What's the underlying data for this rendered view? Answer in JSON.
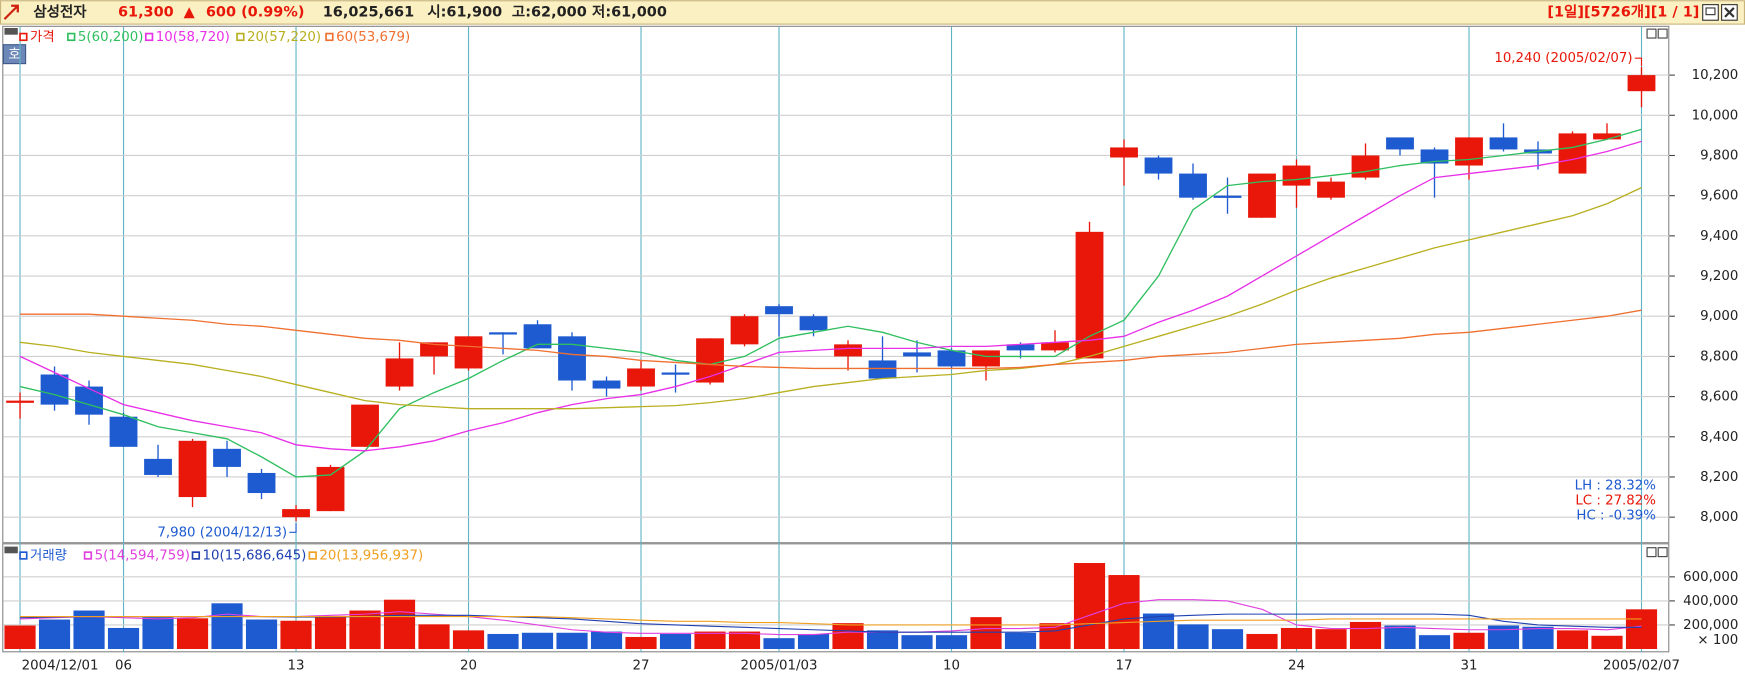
{
  "header": {
    "name": "삼성전자",
    "price": "61,300",
    "change_mark": "▲",
    "change": "600 (0.99%)",
    "volume": "16,025,661",
    "open": "시:61,900",
    "high": "고:62,000",
    "low": "저:61,000",
    "status": "[1일][5726개][1 / 1]",
    "side_button": "호"
  },
  "chart_data": [
    {
      "type": "candlestick",
      "series": [
        {
          "name": "가격",
          "color": "#e8170a",
          "up_color": "#e8170a",
          "down_color": "#1e5bd0",
          "open": [
            8570,
            8710,
            8650,
            8500,
            8290,
            8100,
            8340,
            8220,
            8000,
            8030,
            8350,
            8650,
            8800,
            8740,
            8920,
            8960,
            8900,
            8680,
            8650,
            8720,
            8670,
            8860,
            9050,
            9000,
            8800,
            8780,
            8820,
            8830,
            8750,
            8860,
            8830,
            8790,
            9790,
            9790,
            9710,
            9600,
            9490,
            9650,
            9590,
            9690,
            9890,
            9830,
            9750,
            9890,
            9830,
            9710,
            9880,
            10120
          ],
          "high": [
            8620,
            8750,
            8680,
            8520,
            8360,
            8390,
            8380,
            8240,
            8060,
            8260,
            8560,
            8870,
            8870,
            8900,
            8920,
            8980,
            8920,
            8700,
            8780,
            8760,
            8890,
            9010,
            9060,
            9010,
            8880,
            8900,
            8880,
            8840,
            8830,
            8870,
            8930,
            9470,
            9880,
            9800,
            9760,
            9690,
            9710,
            9780,
            9690,
            9860,
            9890,
            9840,
            9890,
            9960,
            9870,
            9920,
            9960,
            10240
          ],
          "low": [
            8490,
            8530,
            8460,
            8350,
            8200,
            8050,
            8200,
            8090,
            7980,
            8030,
            8350,
            8630,
            8710,
            8730,
            8810,
            8840,
            8630,
            8600,
            8630,
            8620,
            8660,
            8850,
            8900,
            8900,
            8730,
            8690,
            8720,
            8740,
            8680,
            8790,
            8820,
            8790,
            9650,
            9680,
            9580,
            9510,
            9490,
            9540,
            9580,
            9680,
            9800,
            9590,
            9680,
            9820,
            9730,
            9710,
            9880,
            10040
          ],
          "close": [
            8580,
            8560,
            8510,
            8350,
            8210,
            8380,
            8250,
            8120,
            8040,
            8250,
            8560,
            8790,
            8870,
            8900,
            8910,
            8840,
            8680,
            8640,
            8740,
            8710,
            8890,
            9000,
            9010,
            8930,
            8860,
            8690,
            8800,
            8750,
            8830,
            8830,
            8870,
            9420,
            9840,
            9710,
            9590,
            9590,
            9710,
            9750,
            9670,
            9800,
            9830,
            9760,
            9890,
            9830,
            9810,
            9910,
            9910,
            10200
          ]
        },
        {
          "name": "5(60,200)",
          "color": "#2fbf5f",
          "values": [
            8650,
            8610,
            8560,
            8510,
            8450,
            8420,
            8390,
            8300,
            8200,
            8210,
            8330,
            8540,
            8620,
            8690,
            8780,
            8860,
            8860,
            8840,
            8820,
            8780,
            8760,
            8800,
            8890,
            8920,
            8950,
            8920,
            8870,
            8830,
            8800,
            8800,
            8800,
            8900,
            8980,
            9200,
            9530,
            9650,
            9670,
            9680,
            9700,
            9720,
            9750,
            9770,
            9780,
            9800,
            9820,
            9840,
            9880,
            9930
          ]
        },
        {
          "name": "10(58,720)",
          "color": "#e830e8",
          "values": [
            8800,
            8720,
            8640,
            8560,
            8520,
            8480,
            8450,
            8420,
            8360,
            8340,
            8330,
            8350,
            8380,
            8430,
            8470,
            8520,
            8560,
            8590,
            8610,
            8650,
            8700,
            8760,
            8820,
            8830,
            8840,
            8840,
            8840,
            8850,
            8850,
            8860,
            8870,
            8880,
            8900,
            8970,
            9030,
            9100,
            9200,
            9300,
            9400,
            9500,
            9600,
            9690,
            9710,
            9730,
            9750,
            9780,
            9820,
            9870
          ]
        },
        {
          "name": "20(57,220)",
          "color": "#b8b020",
          "values": [
            8870,
            8850,
            8820,
            8800,
            8780,
            8760,
            8730,
            8700,
            8660,
            8620,
            8580,
            8560,
            8550,
            8540,
            8540,
            8540,
            8540,
            8545,
            8550,
            8555,
            8570,
            8590,
            8620,
            8650,
            8670,
            8690,
            8700,
            8710,
            8730,
            8740,
            8760,
            8800,
            8850,
            8900,
            8950,
            9000,
            9060,
            9130,
            9190,
            9240,
            9290,
            9340,
            9380,
            9420,
            9460,
            9500,
            9560,
            9640
          ]
        },
        {
          "name": "60(53,679)",
          "color": "#f07030",
          "values": [
            9010,
            9010,
            9010,
            9000,
            8990,
            8980,
            8960,
            8950,
            8930,
            8910,
            8890,
            8880,
            8860,
            8850,
            8840,
            8830,
            8810,
            8800,
            8780,
            8770,
            8760,
            8750,
            8745,
            8740,
            8740,
            8740,
            8740,
            8740,
            8740,
            8745,
            8760,
            8770,
            8780,
            8800,
            8810,
            8820,
            8840,
            8860,
            8870,
            8880,
            8890,
            8910,
            8920,
            8940,
            8960,
            8980,
            9000,
            9030
          ]
        }
      ],
      "ylim": [
        7870,
        10440
      ],
      "yticks": [
        {
          "value": 8000,
          "label": "8,000"
        },
        {
          "value": 8200,
          "label": "8,200"
        },
        {
          "value": 8400,
          "label": "8,400"
        },
        {
          "value": 8600,
          "label": "8,600"
        },
        {
          "value": 8800,
          "label": "8,800"
        },
        {
          "value": 9000,
          "label": "9,000"
        },
        {
          "value": 9200,
          "label": "9,200"
        },
        {
          "value": 9400,
          "label": "9,400"
        },
        {
          "value": 9600,
          "label": "9,600"
        },
        {
          "value": 9800,
          "label": "9,800"
        },
        {
          "value": 10000,
          "label": "10,000"
        },
        {
          "value": 10200,
          "label": "10,200"
        }
      ],
      "grid": true,
      "high_label": "10,240 (2005/02/07)",
      "low_label": "7,980 (2004/12/13)",
      "stats": [
        {
          "text": "LH : 28.32%",
          "color": "#1e5bd0"
        },
        {
          "text": "LC : 27.82%",
          "color": "#e8170a"
        },
        {
          "text": "HC : -0.39%",
          "color": "#1e5bd0"
        }
      ]
    },
    {
      "type": "bar",
      "categories": [
        "2004/12/01",
        null,
        null,
        "06",
        null,
        null,
        null,
        null,
        "13",
        null,
        null,
        null,
        null,
        "20",
        null,
        null,
        null,
        null,
        "27",
        null,
        null,
        null,
        "2005/01/03",
        null,
        null,
        null,
        null,
        "10",
        null,
        null,
        null,
        null,
        "17",
        null,
        null,
        null,
        null,
        "24",
        null,
        null,
        null,
        null,
        "31",
        null,
        null,
        null,
        null,
        "2005/02/07"
      ],
      "series": [
        {
          "name": "거래량",
          "color": "#1e5bd0",
          "values": [
            195000,
            245000,
            320000,
            175000,
            265000,
            255000,
            380000,
            245000,
            235000,
            275000,
            320000,
            410000,
            205000,
            155000,
            125000,
            135000,
            135000,
            145000,
            100000,
            125000,
            145000,
            145000,
            90000,
            125000,
            215000,
            155000,
            115000,
            115000,
            265000,
            135000,
            215000,
            715000,
            615000,
            295000,
            205000,
            165000,
            125000,
            175000,
            165000,
            225000,
            195000,
            115000,
            135000,
            195000,
            185000,
            155000,
            110000,
            330000
          ]
        },
        {
          "name": "5(14,594,759)",
          "color": "#e040e0",
          "values": [
            250000,
            260000,
            270000,
            260000,
            250000,
            260000,
            290000,
            270000,
            270000,
            280000,
            290000,
            310000,
            290000,
            270000,
            240000,
            200000,
            160000,
            140000,
            130000,
            130000,
            130000,
            130000,
            120000,
            120000,
            140000,
            140000,
            140000,
            150000,
            170000,
            170000,
            180000,
            280000,
            380000,
            410000,
            410000,
            400000,
            330000,
            200000,
            170000,
            170000,
            180000,
            170000,
            160000,
            160000,
            170000,
            170000,
            160000,
            190000
          ]
        },
        {
          "name": "10(15,686,645)",
          "color": "#2040b0",
          "values": [
            260000,
            265000,
            270000,
            270000,
            270000,
            270000,
            270000,
            270000,
            265000,
            265000,
            270000,
            280000,
            280000,
            280000,
            270000,
            260000,
            250000,
            230000,
            210000,
            200000,
            190000,
            180000,
            170000,
            160000,
            150000,
            140000,
            140000,
            140000,
            140000,
            140000,
            150000,
            200000,
            250000,
            270000,
            280000,
            290000,
            290000,
            290000,
            290000,
            290000,
            290000,
            290000,
            280000,
            230000,
            200000,
            190000,
            180000,
            180000
          ]
        },
        {
          "name": "20(13,956,937)",
          "color": "#f0a020",
          "values": [
            270000,
            270000,
            270000,
            270000,
            270000,
            270000,
            270000,
            270000,
            270000,
            270000,
            270000,
            270000,
            270000,
            270000,
            270000,
            270000,
            260000,
            250000,
            240000,
            230000,
            230000,
            220000,
            220000,
            210000,
            200000,
            200000,
            200000,
            200000,
            200000,
            200000,
            200000,
            210000,
            220000,
            230000,
            240000,
            240000,
            240000,
            240000,
            250000,
            250000,
            250000,
            250000,
            250000,
            250000,
            250000,
            250000,
            250000,
            250000
          ]
        }
      ],
      "ylim": [
        0,
        870000
      ],
      "yticks": [
        {
          "value": 200000,
          "label": "200,000"
        },
        {
          "value": 400000,
          "label": "400,000"
        },
        {
          "value": 600000,
          "label": "600,000"
        }
      ],
      "unit_label": "× 100",
      "grid": true
    }
  ]
}
